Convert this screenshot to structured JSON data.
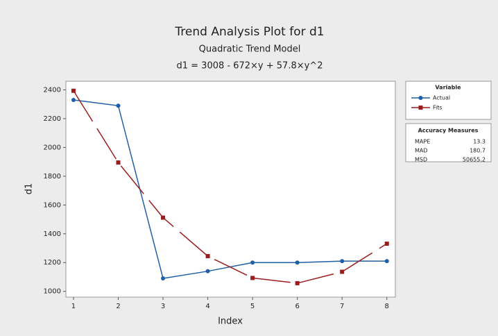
{
  "chart_data": {
    "type": "line",
    "title": "Trend Analysis Plot for d1",
    "subtitle": "Quadratic Trend Model",
    "equation": "d1 = 3008 - 672×y + 57.8×y^2",
    "xlabel": "Index",
    "ylabel": "d1",
    "x": [
      1,
      2,
      3,
      4,
      5,
      6,
      7,
      8
    ],
    "series": [
      {
        "name": "Actual",
        "color": "#1f5fa8",
        "marker": "circle",
        "values": [
          2330,
          2290,
          1090,
          1140,
          1200,
          1200,
          1210,
          1210
        ]
      },
      {
        "name": "Fits",
        "color": "#9b1c1c",
        "marker": "square",
        "values": [
          2393.8,
          1895.2,
          1512.2,
          1244.8,
          1093,
          1056.8,
          1136.2,
          1331.2
        ]
      }
    ],
    "xlim": [
      0.83,
      8.19
    ],
    "ylim": [
      960,
      2460
    ],
    "xticks": [
      1,
      2,
      3,
      4,
      5,
      6,
      7,
      8
    ],
    "yticks": [
      1000,
      1200,
      1400,
      1600,
      1800,
      2000,
      2200,
      2400
    ],
    "legend_title": "Variable",
    "accuracy": {
      "title": "Accuracy Measures",
      "measures": [
        {
          "name": "MAPE",
          "value": 13.3
        },
        {
          "name": "MAD",
          "value": 180.7
        },
        {
          "name": "MSD",
          "value": 50655.2
        }
      ]
    }
  }
}
